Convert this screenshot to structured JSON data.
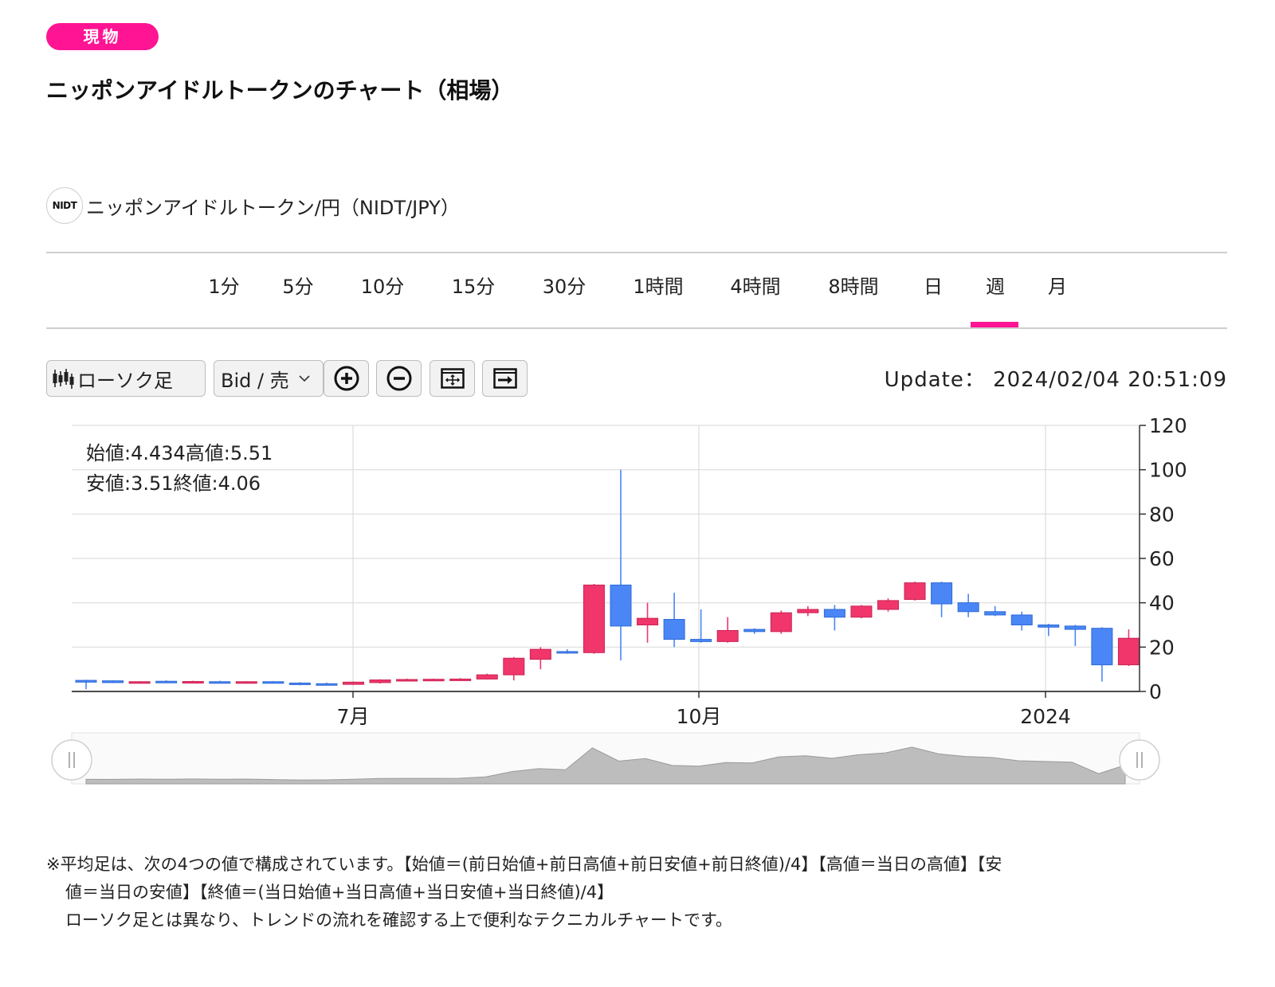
{
  "badge": "現物",
  "page_title": "ニッポンアイドルトークンのチャート（相場）",
  "pair": {
    "logo_text": "NIDT",
    "name": "ニッポンアイドルトークン/円（NIDT/JPY）"
  },
  "tabs": [
    "1分",
    "5分",
    "10分",
    "15分",
    "30分",
    "1時間",
    "4時間",
    "8時間",
    "日",
    "週",
    "月"
  ],
  "active_tab": "週",
  "toolbar": {
    "chart_type_label": "ローソク足",
    "price_type_label": "Bid / 売",
    "icons": [
      "candlestick-icon",
      "chevron-down-icon",
      "zoom-in-icon",
      "zoom-out-icon",
      "fit-chart-icon",
      "scroll-end-icon"
    ]
  },
  "update": {
    "label": "Update：",
    "value": "2024/02/04 20:51:09"
  },
  "ohlc": {
    "line1": "始値:4.434高値:5.51",
    "line2": "安値:3.51終値:4.06"
  },
  "colors": {
    "accent": "#ff1493",
    "up": "#f0366b",
    "down": "#4a86f5",
    "grid": "#dddddd"
  },
  "chart_data": {
    "type": "candlestick",
    "interval": "週",
    "ylim": [
      0,
      120
    ],
    "y_ticks": [
      "0",
      "20",
      "40",
      "60",
      "80",
      "100",
      "120"
    ],
    "x_ticks": [
      "7月",
      "10月",
      "2024"
    ],
    "candles": [
      {
        "open": 5.0,
        "high": 5.3,
        "low": 1.0,
        "close": 4.2
      },
      {
        "open": 4.8,
        "high": 5.0,
        "low": 3.8,
        "close": 4.0
      },
      {
        "open": 4.0,
        "high": 4.6,
        "low": 3.7,
        "close": 4.4
      },
      {
        "open": 4.6,
        "high": 5.0,
        "low": 3.9,
        "close": 4.2
      },
      {
        "open": 4.0,
        "high": 4.8,
        "low": 3.6,
        "close": 4.5
      },
      {
        "open": 4.4,
        "high": 4.8,
        "low": 4.0,
        "close": 4.2
      },
      {
        "open": 4.0,
        "high": 4.6,
        "low": 3.7,
        "close": 4.4
      },
      {
        "open": 4.4,
        "high": 4.7,
        "low": 3.6,
        "close": 3.8
      },
      {
        "open": 3.8,
        "high": 4.2,
        "low": 2.8,
        "close": 3.2
      },
      {
        "open": 3.5,
        "high": 4.0,
        "low": 3.0,
        "close": 3.3
      },
      {
        "open": 3.2,
        "high": 4.5,
        "low": 3.0,
        "close": 4.2
      },
      {
        "open": 4.0,
        "high": 5.5,
        "low": 3.6,
        "close": 5.2
      },
      {
        "open": 5.0,
        "high": 5.8,
        "low": 4.6,
        "close": 5.4
      },
      {
        "open": 5.4,
        "high": 5.8,
        "low": 5.0,
        "close": 5.5
      },
      {
        "open": 5.5,
        "high": 6.0,
        "low": 5.2,
        "close": 5.6
      },
      {
        "open": 5.6,
        "high": 8.0,
        "low": 5.4,
        "close": 7.5
      },
      {
        "open": 7.5,
        "high": 15.5,
        "low": 5.0,
        "close": 15.0
      },
      {
        "open": 14.5,
        "high": 20.0,
        "low": 10.0,
        "close": 19.0
      },
      {
        "open": 18.0,
        "high": 19.0,
        "low": 17.0,
        "close": 17.5
      },
      {
        "open": 17.5,
        "high": 48.5,
        "low": 17.0,
        "close": 48.0
      },
      {
        "open": 48.0,
        "high": 100.0,
        "low": 14.0,
        "close": 29.5
      },
      {
        "open": 30.0,
        "high": 40.0,
        "low": 22.0,
        "close": 33.0
      },
      {
        "open": 32.5,
        "high": 44.5,
        "low": 20.0,
        "close": 23.5
      },
      {
        "open": 23.5,
        "high": 37.0,
        "low": 22.0,
        "close": 22.5
      },
      {
        "open": 22.5,
        "high": 33.5,
        "low": 22.0,
        "close": 27.5
      },
      {
        "open": 28.0,
        "high": 28.5,
        "low": 26.0,
        "close": 27.0
      },
      {
        "open": 27.0,
        "high": 36.5,
        "low": 26.0,
        "close": 35.5
      },
      {
        "open": 35.5,
        "high": 38.5,
        "low": 34.0,
        "close": 37.0
      },
      {
        "open": 37.0,
        "high": 39.0,
        "low": 27.5,
        "close": 33.5
      },
      {
        "open": 33.5,
        "high": 39.0,
        "low": 33.0,
        "close": 38.5
      },
      {
        "open": 37.0,
        "high": 42.0,
        "low": 36.0,
        "close": 41.0
      },
      {
        "open": 41.5,
        "high": 49.5,
        "low": 41.0,
        "close": 49.0
      },
      {
        "open": 49.0,
        "high": 49.5,
        "low": 33.5,
        "close": 39.5
      },
      {
        "open": 40.0,
        "high": 44.0,
        "low": 33.5,
        "close": 36.0
      },
      {
        "open": 36.0,
        "high": 38.5,
        "low": 34.0,
        "close": 34.5
      },
      {
        "open": 34.5,
        "high": 36.0,
        "low": 27.5,
        "close": 30.0
      },
      {
        "open": 30.0,
        "high": 30.5,
        "low": 25.0,
        "close": 29.0
      },
      {
        "open": 29.5,
        "high": 30.0,
        "low": 20.5,
        "close": 28.0
      },
      {
        "open": 28.5,
        "high": 29.0,
        "low": 4.5,
        "close": 12.0
      },
      {
        "open": 12.0,
        "high": 28.0,
        "low": 11.5,
        "close": 24.0
      }
    ]
  },
  "footnote": {
    "line1": "※平均足は、次の4つの値で構成されています。【始値＝(前日始値+前日高値+前日安値+前日終値)/4】【高値＝当日の高値】【安",
    "line2": "値＝当日の安値】【終値＝(当日始値+当日高値+当日安値+当日終値)/4】",
    "line3": "ローソク足とは異なり、トレンドの流れを確認する上で便利なテクニカルチャートです。"
  }
}
